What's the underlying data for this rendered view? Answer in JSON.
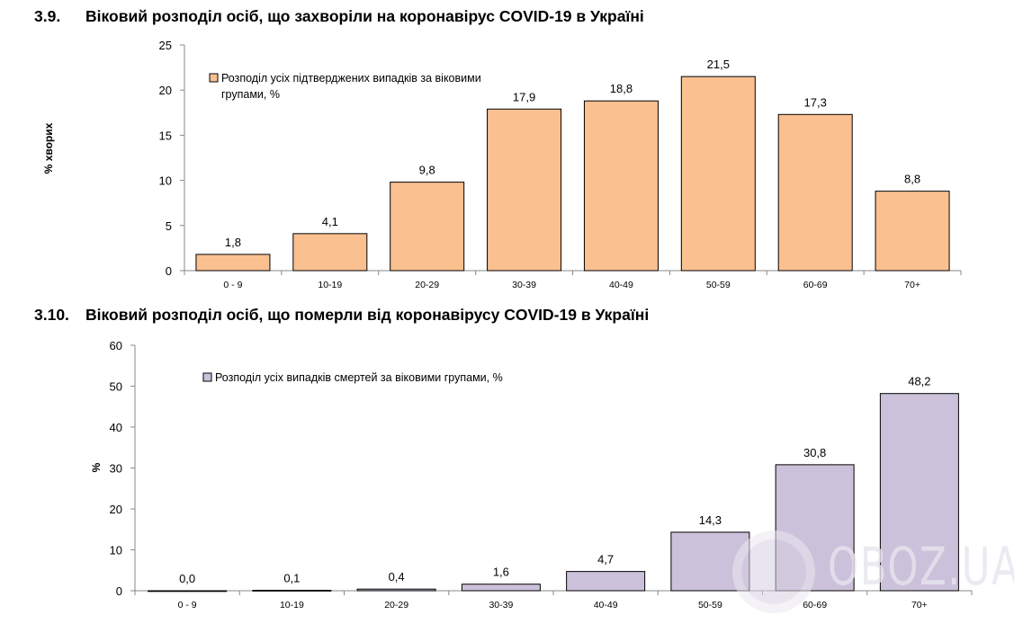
{
  "charts_titles": [
    {
      "number": "3.9.",
      "text": "Віковий розподіл осіб, що захворіли на коронавірус COVID-19 в Україні"
    },
    {
      "number": "3.10.",
      "text": "Віковий розподіл осіб, що померли від коронавірусу COVID-19 в Україні"
    }
  ],
  "watermark": "OBOZ.UA",
  "chart_data": [
    {
      "type": "bar",
      "title": "Віковий розподіл осіб, що захворіли на коронавірус COVID-19 в Україні",
      "categories": [
        "0 - 9",
        "10-19",
        "20-29",
        "30-39",
        "40-49",
        "50-59",
        "60-69",
        "70+"
      ],
      "series": [
        {
          "name": "Розподіл усіх підтверджених випадків за віковими групами, %",
          "values": [
            1.8,
            4.1,
            9.8,
            17.9,
            18.8,
            21.5,
            17.3,
            8.8
          ],
          "color": "#FAC090"
        }
      ],
      "data_labels": [
        "1,8",
        "4,1",
        "9,8",
        "17,9",
        "18,8",
        "21,5",
        "17,3",
        "8,8"
      ],
      "legend_lines": [
        "Розподіл усіх підтверджених випадків за віковими",
        "групами, %"
      ],
      "xlabel": "",
      "ylabel": "% хворих",
      "ylim": [
        0,
        25
      ],
      "yticks": [
        0,
        5,
        10,
        15,
        20,
        25
      ],
      "grid": false,
      "legend_position": "top-left"
    },
    {
      "type": "bar",
      "title": "Віковий розподіл осіб, що померли від коронавірусу COVID-19 в Україні",
      "categories": [
        "0 - 9",
        "10-19",
        "20-29",
        "30-39",
        "40-49",
        "50-59",
        "60-69",
        "70+"
      ],
      "series": [
        {
          "name": "Розподіл усіх випадків смертей за віковими групами, %",
          "values": [
            0.0,
            0.1,
            0.4,
            1.6,
            4.7,
            14.3,
            30.8,
            48.2
          ],
          "color": "#CCC1DA"
        }
      ],
      "data_labels": [
        "0,0",
        "0,1",
        "0,4",
        "1,6",
        "4,7",
        "14,3",
        "30,8",
        "48,2"
      ],
      "legend_lines": [
        "Розподіл усіх випадків смертей за віковими групами, %"
      ],
      "xlabel": "",
      "ylabel": "%",
      "ylim": [
        0,
        60
      ],
      "yticks": [
        0,
        10,
        20,
        30,
        40,
        50,
        60
      ],
      "grid": false,
      "legend_position": "top-left"
    }
  ]
}
